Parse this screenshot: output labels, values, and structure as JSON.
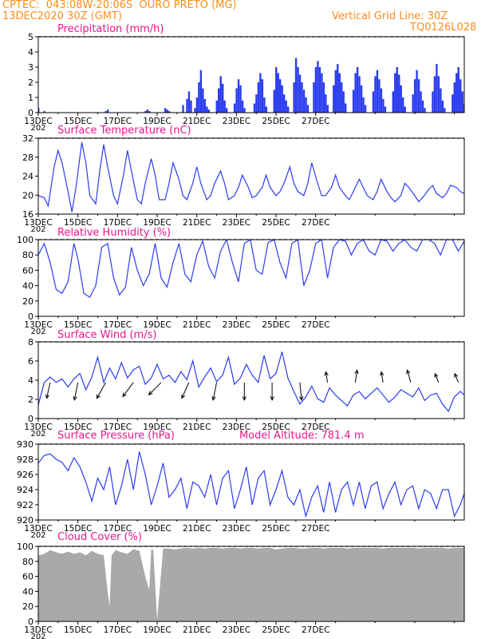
{
  "header": {
    "line1_left": "CPTEC:  043:08W-20:06S  OURO PRETO (MG)",
    "line2_left": "13DEC2020 30Z (GMT)",
    "line2_right": "Vertical Grid Line: 30Z",
    "line3_right": "TQ0126L028"
  },
  "x_tick_labels": [
    "13DEC",
    "15DEC",
    "17DEC",
    "19DEC",
    "21DEC",
    "23DEC",
    "25DEC",
    "27DEC"
  ],
  "x_year_label": "202",
  "colors": {
    "header": "#ff8c1a",
    "title": "#e8168c",
    "series": "#2a3cf0",
    "cloud": "#a9a9a9",
    "arrow": "#000000"
  },
  "panels": {
    "precip": {
      "title": "Precipitation (mm/h)",
      "yticks": [
        "5",
        "4",
        "3",
        "2",
        "1",
        "0"
      ]
    },
    "temp": {
      "title": "Surface Temperature (nC)",
      "yticks": [
        "32",
        "28",
        "24",
        "20",
        "16"
      ]
    },
    "rh": {
      "title": "Relative Humidity (%)",
      "yticks": [
        "100",
        "80",
        "60",
        "40",
        "20",
        "0"
      ]
    },
    "wind": {
      "title": "Surface Wind (m/s)",
      "yticks": [
        "8",
        "6",
        "4",
        "2",
        "0"
      ]
    },
    "pressure": {
      "title": "Surface Pressure (hPa)",
      "extra": "Model Altitude: 781.4 m",
      "yticks": [
        "930",
        "928",
        "926",
        "924",
        "922",
        "920"
      ]
    },
    "cloud": {
      "title": "Cloud Cover (%)",
      "yticks": [
        "100",
        "80",
        "60",
        "40",
        "20",
        "0"
      ]
    }
  },
  "chart_data": [
    {
      "type": "bar",
      "title": "Precipitation (mm/h)",
      "x_unit": "days since 13DEC2020 00Z",
      "ylim": [
        0,
        5
      ],
      "x": [
        0.0,
        0.3,
        3.4,
        3.5,
        5.4,
        5.5,
        5.6,
        6.4,
        6.5,
        6.6,
        7.3,
        7.5,
        7.6,
        7.7,
        7.9,
        8.0,
        8.1,
        8.2,
        8.3,
        8.4,
        8.5,
        8.6,
        9.0,
        9.1,
        9.2,
        9.3,
        9.4,
        9.5,
        9.9,
        10.0,
        10.1,
        10.2,
        10.3,
        10.4,
        10.9,
        11.0,
        11.1,
        11.2,
        11.3,
        11.4,
        11.5,
        11.9,
        12.0,
        12.1,
        12.2,
        12.3,
        12.4,
        12.5,
        12.6,
        12.9,
        13.0,
        13.1,
        13.2,
        13.3,
        13.4,
        13.5,
        13.6,
        13.9,
        14.0,
        14.1,
        14.2,
        14.3,
        14.4,
        14.5,
        14.6,
        14.9,
        15.0,
        15.1,
        15.2,
        15.3,
        15.4,
        15.5,
        15.9,
        16.0,
        16.1,
        16.2,
        16.3,
        16.4,
        16.5,
        16.9,
        17.0,
        17.1,
        17.2,
        17.3,
        17.4,
        17.5,
        17.9,
        18.0,
        18.1,
        18.2,
        18.3,
        18.4,
        18.5,
        18.9,
        19.0,
        19.1,
        19.2,
        19.3,
        19.4,
        19.5,
        19.9,
        20.0,
        20.1,
        20.2,
        20.3,
        20.4,
        20.5,
        20.9,
        21.0,
        21.1,
        21.2,
        21.3,
        21.4,
        21.5
      ],
      "values": [
        0.3,
        0.1,
        0.1,
        0.2,
        0.1,
        0.2,
        0.1,
        0.3,
        0.2,
        0.1,
        0.5,
        0.9,
        1.4,
        0.8,
        0.3,
        1.0,
        2.0,
        2.8,
        1.6,
        0.9,
        0.4,
        0.2,
        0.8,
        1.6,
        2.4,
        1.9,
        0.8,
        0.3,
        0.6,
        1.6,
        2.2,
        1.8,
        0.8,
        0.3,
        0.6,
        1.2,
        2.0,
        2.6,
        2.2,
        1.0,
        0.4,
        1.5,
        3.0,
        2.6,
        2.2,
        1.8,
        1.2,
        0.8,
        0.4,
        2.0,
        3.6,
        3.0,
        2.5,
        2.0,
        1.5,
        1.0,
        0.5,
        2.0,
        3.0,
        3.4,
        3.0,
        2.6,
        2.0,
        1.2,
        0.5,
        1.8,
        2.8,
        3.2,
        2.6,
        2.0,
        1.4,
        0.6,
        1.5,
        2.6,
        3.0,
        2.4,
        1.8,
        1.0,
        0.5,
        1.4,
        2.4,
        2.8,
        2.2,
        1.6,
        0.9,
        0.4,
        1.4,
        2.6,
        3.0,
        2.5,
        1.8,
        1.0,
        0.4,
        1.2,
        2.2,
        2.8,
        2.2,
        1.4,
        0.8,
        0.3,
        1.4,
        2.4,
        3.2,
        2.4,
        1.6,
        0.8,
        0.3,
        1.2,
        2.0,
        2.6,
        3.0,
        2.2,
        1.4,
        0.6
      ]
    },
    {
      "type": "line",
      "title": "Surface Temperature (nC)",
      "x_unit": "days since 13DEC2020 00Z",
      "ylim": [
        14.5,
        33
      ],
      "x": [
        0.0,
        0.3,
        0.5,
        0.8,
        1.0,
        1.2,
        1.5,
        1.7,
        1.9,
        2.2,
        2.4,
        2.6,
        2.9,
        3.1,
        3.3,
        3.5,
        3.8,
        4.0,
        4.3,
        4.5,
        4.7,
        5.0,
        5.2,
        5.4,
        5.7,
        5.9,
        6.1,
        6.4,
        6.6,
        6.8,
        7.1,
        7.3,
        7.5,
        7.8,
        8.0,
        8.2,
        8.5,
        8.7,
        8.9,
        9.2,
        9.4,
        9.6,
        9.9,
        10.1,
        10.3,
        10.6,
        10.8,
        11.0,
        11.3,
        11.5,
        11.7,
        12.0,
        12.2,
        12.4,
        12.7,
        12.9,
        13.1,
        13.4,
        13.6,
        13.8,
        14.1,
        14.3,
        14.5,
        14.8,
        15.0,
        15.2,
        15.5,
        15.7,
        15.9,
        16.2,
        16.4,
        16.6,
        16.9,
        17.1,
        17.3,
        17.6,
        17.8,
        18.0,
        18.3,
        18.5,
        18.7,
        19.0,
        19.2,
        19.4,
        19.7,
        19.9,
        20.1,
        20.4,
        20.6,
        20.8,
        21.1,
        21.3,
        21.5
      ],
      "values": [
        19,
        18.5,
        16.5,
        26,
        30,
        27,
        20,
        15,
        21,
        32,
        27,
        19,
        17,
        25,
        31.5,
        26,
        19,
        17,
        24,
        30,
        25,
        18,
        17,
        22,
        28,
        24,
        18,
        18,
        22,
        27,
        23,
        19,
        18,
        22,
        26,
        22,
        18,
        19,
        22,
        25,
        22,
        18,
        19,
        21,
        24,
        21,
        18.5,
        19,
        21,
        24,
        21,
        19,
        20,
        22,
        26,
        22,
        20,
        19,
        22,
        27,
        22,
        19,
        19,
        21,
        24,
        21,
        19,
        18,
        20,
        23,
        21,
        19,
        18,
        20,
        23,
        20,
        18.5,
        17.5,
        19,
        22,
        21,
        19,
        17.5,
        18.5,
        20.5,
        21.5,
        19.5,
        18.5,
        19.5,
        21.5,
        21,
        20,
        19.5
      ]
    },
    {
      "type": "line",
      "title": "Relative Humidity (%)",
      "x_unit": "days since 13DEC2020 00Z",
      "ylim": [
        0,
        100
      ],
      "x": [
        0.0,
        0.3,
        0.6,
        0.9,
        1.2,
        1.5,
        1.8,
        2.0,
        2.3,
        2.6,
        2.9,
        3.2,
        3.5,
        3.8,
        4.1,
        4.4,
        4.7,
        5.0,
        5.3,
        5.6,
        5.9,
        6.2,
        6.5,
        6.8,
        7.1,
        7.4,
        7.7,
        8.0,
        8.3,
        8.6,
        8.9,
        9.2,
        9.5,
        9.8,
        10.1,
        10.4,
        10.7,
        11.0,
        11.3,
        11.6,
        11.9,
        12.2,
        12.5,
        12.8,
        13.1,
        13.4,
        13.7,
        14.0,
        14.3,
        14.6,
        14.9,
        15.2,
        15.5,
        15.8,
        16.1,
        16.4,
        16.7,
        17.0,
        17.3,
        17.6,
        17.9,
        18.2,
        18.5,
        18.8,
        19.1,
        19.4,
        19.7,
        20.0,
        20.3,
        20.6,
        20.9,
        21.2,
        21.5
      ],
      "values": [
        80,
        95,
        70,
        35,
        30,
        45,
        95,
        75,
        30,
        25,
        40,
        90,
        95,
        50,
        28,
        38,
        90,
        60,
        40,
        55,
        95,
        50,
        38,
        70,
        95,
        55,
        45,
        80,
        98,
        65,
        50,
        85,
        100,
        70,
        45,
        95,
        100,
        60,
        55,
        96,
        100,
        70,
        50,
        95,
        100,
        40,
        60,
        95,
        100,
        50,
        90,
        100,
        98,
        80,
        95,
        100,
        85,
        80,
        100,
        98,
        85,
        95,
        100,
        90,
        85,
        100,
        100,
        95,
        80,
        100,
        100,
        85,
        98
      ]
    },
    {
      "type": "line",
      "title": "Surface Wind (m/s)",
      "x_unit": "days since 13DEC2020 00Z",
      "ylim": [
        0,
        8.5
      ],
      "x": [
        0.0,
        0.3,
        0.6,
        0.9,
        1.2,
        1.5,
        1.8,
        2.1,
        2.4,
        2.7,
        3.0,
        3.3,
        3.6,
        3.9,
        4.2,
        4.5,
        4.8,
        5.1,
        5.4,
        5.7,
        6.0,
        6.3,
        6.6,
        6.9,
        7.2,
        7.5,
        7.8,
        8.1,
        8.4,
        8.7,
        9.0,
        9.3,
        9.6,
        9.9,
        10.2,
        10.5,
        10.8,
        11.1,
        11.4,
        11.7,
        12.0,
        12.3,
        12.6,
        12.9,
        13.2,
        13.5,
        13.8,
        14.1,
        14.4,
        14.7,
        15.0,
        15.3,
        15.6,
        15.9,
        16.2,
        16.5,
        16.8,
        17.1,
        17.4,
        17.7,
        18.0,
        18.3,
        18.6,
        18.9,
        19.2,
        19.5,
        19.8,
        20.1,
        20.4,
        20.7,
        21.0,
        21.3,
        21.5
      ],
      "values": [
        1.5,
        4.0,
        4.6,
        4.0,
        4.4,
        3.5,
        4.4,
        5.0,
        3.2,
        4.6,
        6.8,
        4.0,
        5.6,
        4.4,
        6.2,
        4.5,
        5.4,
        5.8,
        3.8,
        4.5,
        6.0,
        4.4,
        4.8,
        4.0,
        5.2,
        4.3,
        6.4,
        3.5,
        4.6,
        5.6,
        4.1,
        4.8,
        6.8,
        3.8,
        4.5,
        6.0,
        4.8,
        4.0,
        7.0,
        4.4,
        5.0,
        7.4,
        4.5,
        3.0,
        1.6,
        2.4,
        3.6,
        2.2,
        1.8,
        3.4,
        2.6,
        2.0,
        1.4,
        2.6,
        3.0,
        2.2,
        2.8,
        3.4,
        2.6,
        1.8,
        2.4,
        3.2,
        2.8,
        2.4,
        3.4,
        2.0,
        2.6,
        2.8,
        1.6,
        0.8,
        2.4,
        3.0,
        2.6
      ],
      "vectors": {
        "x": [
          0.6,
          2.0,
          3.4,
          4.8,
          6.2,
          7.6,
          9.0,
          10.4,
          11.8,
          13.2,
          14.6,
          16.0,
          17.4,
          18.8,
          20.2,
          21.2
        ],
        "u": [
          -0.2,
          -0.2,
          -0.5,
          -0.6,
          -0.7,
          -0.4,
          -0.2,
          0.0,
          0.0,
          0.1,
          -0.1,
          0.1,
          -0.1,
          -0.2,
          -0.2,
          -0.2
        ],
        "v": [
          -0.9,
          -1.0,
          -0.9,
          -0.8,
          -0.7,
          -0.9,
          -1.0,
          -1.0,
          -1.0,
          -1.0,
          0.6,
          0.7,
          0.6,
          0.7,
          0.5,
          0.5
        ]
      }
    },
    {
      "type": "line",
      "title": "Surface Pressure (hPa)",
      "x_unit": "days since 13DEC2020 00Z",
      "ylim": [
        920,
        930
      ],
      "x": [
        0.0,
        0.3,
        0.6,
        0.9,
        1.2,
        1.5,
        1.8,
        2.1,
        2.4,
        2.7,
        3.0,
        3.3,
        3.6,
        3.9,
        4.2,
        4.5,
        4.8,
        5.1,
        5.4,
        5.7,
        6.0,
        6.3,
        6.6,
        6.9,
        7.2,
        7.5,
        7.8,
        8.1,
        8.4,
        8.7,
        9.0,
        9.3,
        9.6,
        9.9,
        10.2,
        10.5,
        10.8,
        11.1,
        11.4,
        11.7,
        12.0,
        12.3,
        12.6,
        12.9,
        13.2,
        13.5,
        13.8,
        14.1,
        14.4,
        14.7,
        15.0,
        15.3,
        15.6,
        15.9,
        16.2,
        16.5,
        16.8,
        17.1,
        17.4,
        17.7,
        18.0,
        18.3,
        18.6,
        18.9,
        19.2,
        19.5,
        19.8,
        20.1,
        20.4,
        20.7,
        21.0,
        21.3,
        21.5
      ],
      "values": [
        927.5,
        928.5,
        928.7,
        928.0,
        927.6,
        926.5,
        928.2,
        927.0,
        925.0,
        922.5,
        925.5,
        924.0,
        927.0,
        922.0,
        924.5,
        928.0,
        924.0,
        929.0,
        926.0,
        922.0,
        924.5,
        927.5,
        923.0,
        924.0,
        925.5,
        921.5,
        925.0,
        924.5,
        923.0,
        926.0,
        922.0,
        925.5,
        926.5,
        921.5,
        924.0,
        927.0,
        922.0,
        925.5,
        926.5,
        922.0,
        924.0,
        926.5,
        923.0,
        922.0,
        924.0,
        920.5,
        923.0,
        924.5,
        921.0,
        925.0,
        921.0,
        924.0,
        925.0,
        922.0,
        925.0,
        921.5,
        924.5,
        925.0,
        921.5,
        923.5,
        925.0,
        922.0,
        924.0,
        924.5,
        921.5,
        924.0,
        923.5,
        921.5,
        924.0,
        924.0,
        920.5,
        922.0,
        923.5
      ]
    },
    {
      "type": "area",
      "title": "Cloud Cover (%)",
      "x_unit": "days since 13DEC2020 00Z",
      "ylim": [
        0,
        100
      ],
      "x": [
        0.0,
        0.3,
        0.6,
        0.9,
        1.2,
        1.5,
        1.8,
        2.1,
        2.4,
        2.7,
        3.0,
        3.3,
        3.5,
        3.6,
        3.7,
        3.9,
        4.2,
        4.5,
        4.8,
        5.1,
        5.4,
        5.6,
        5.7,
        5.8,
        6.0,
        6.3,
        6.6,
        6.9,
        7.2,
        7.5,
        7.8,
        8.1,
        8.4,
        8.7,
        9.0,
        9.3,
        9.6,
        9.9,
        10.2,
        10.5,
        10.8,
        11.1,
        11.4,
        11.7,
        12.0,
        12.3,
        12.6,
        12.9,
        13.2,
        13.5,
        13.8,
        14.1,
        14.4,
        14.7,
        15.0,
        15.3,
        15.6,
        15.9,
        16.2,
        16.5,
        16.8,
        17.1,
        17.4,
        17.7,
        18.0,
        18.3,
        18.6,
        18.9,
        19.2,
        19.5,
        19.8,
        20.1,
        20.4,
        20.7,
        21.0,
        21.3,
        21.5
      ],
      "values": [
        88,
        90,
        95,
        92,
        90,
        93,
        90,
        92,
        88,
        94,
        90,
        88,
        40,
        20,
        88,
        95,
        92,
        90,
        96,
        94,
        60,
        42,
        96,
        95,
        2,
        97,
        97,
        96,
        97,
        98,
        97,
        98,
        97,
        98,
        98,
        97,
        98,
        98,
        97,
        98,
        98,
        97,
        98,
        98,
        96,
        97,
        98,
        98,
        97,
        97,
        98,
        98,
        97,
        98,
        98,
        98,
        97,
        98,
        98,
        98,
        98,
        98,
        97,
        98,
        98,
        98,
        98,
        98,
        97,
        98,
        98,
        98,
        98,
        97,
        98,
        98,
        98
      ]
    }
  ]
}
